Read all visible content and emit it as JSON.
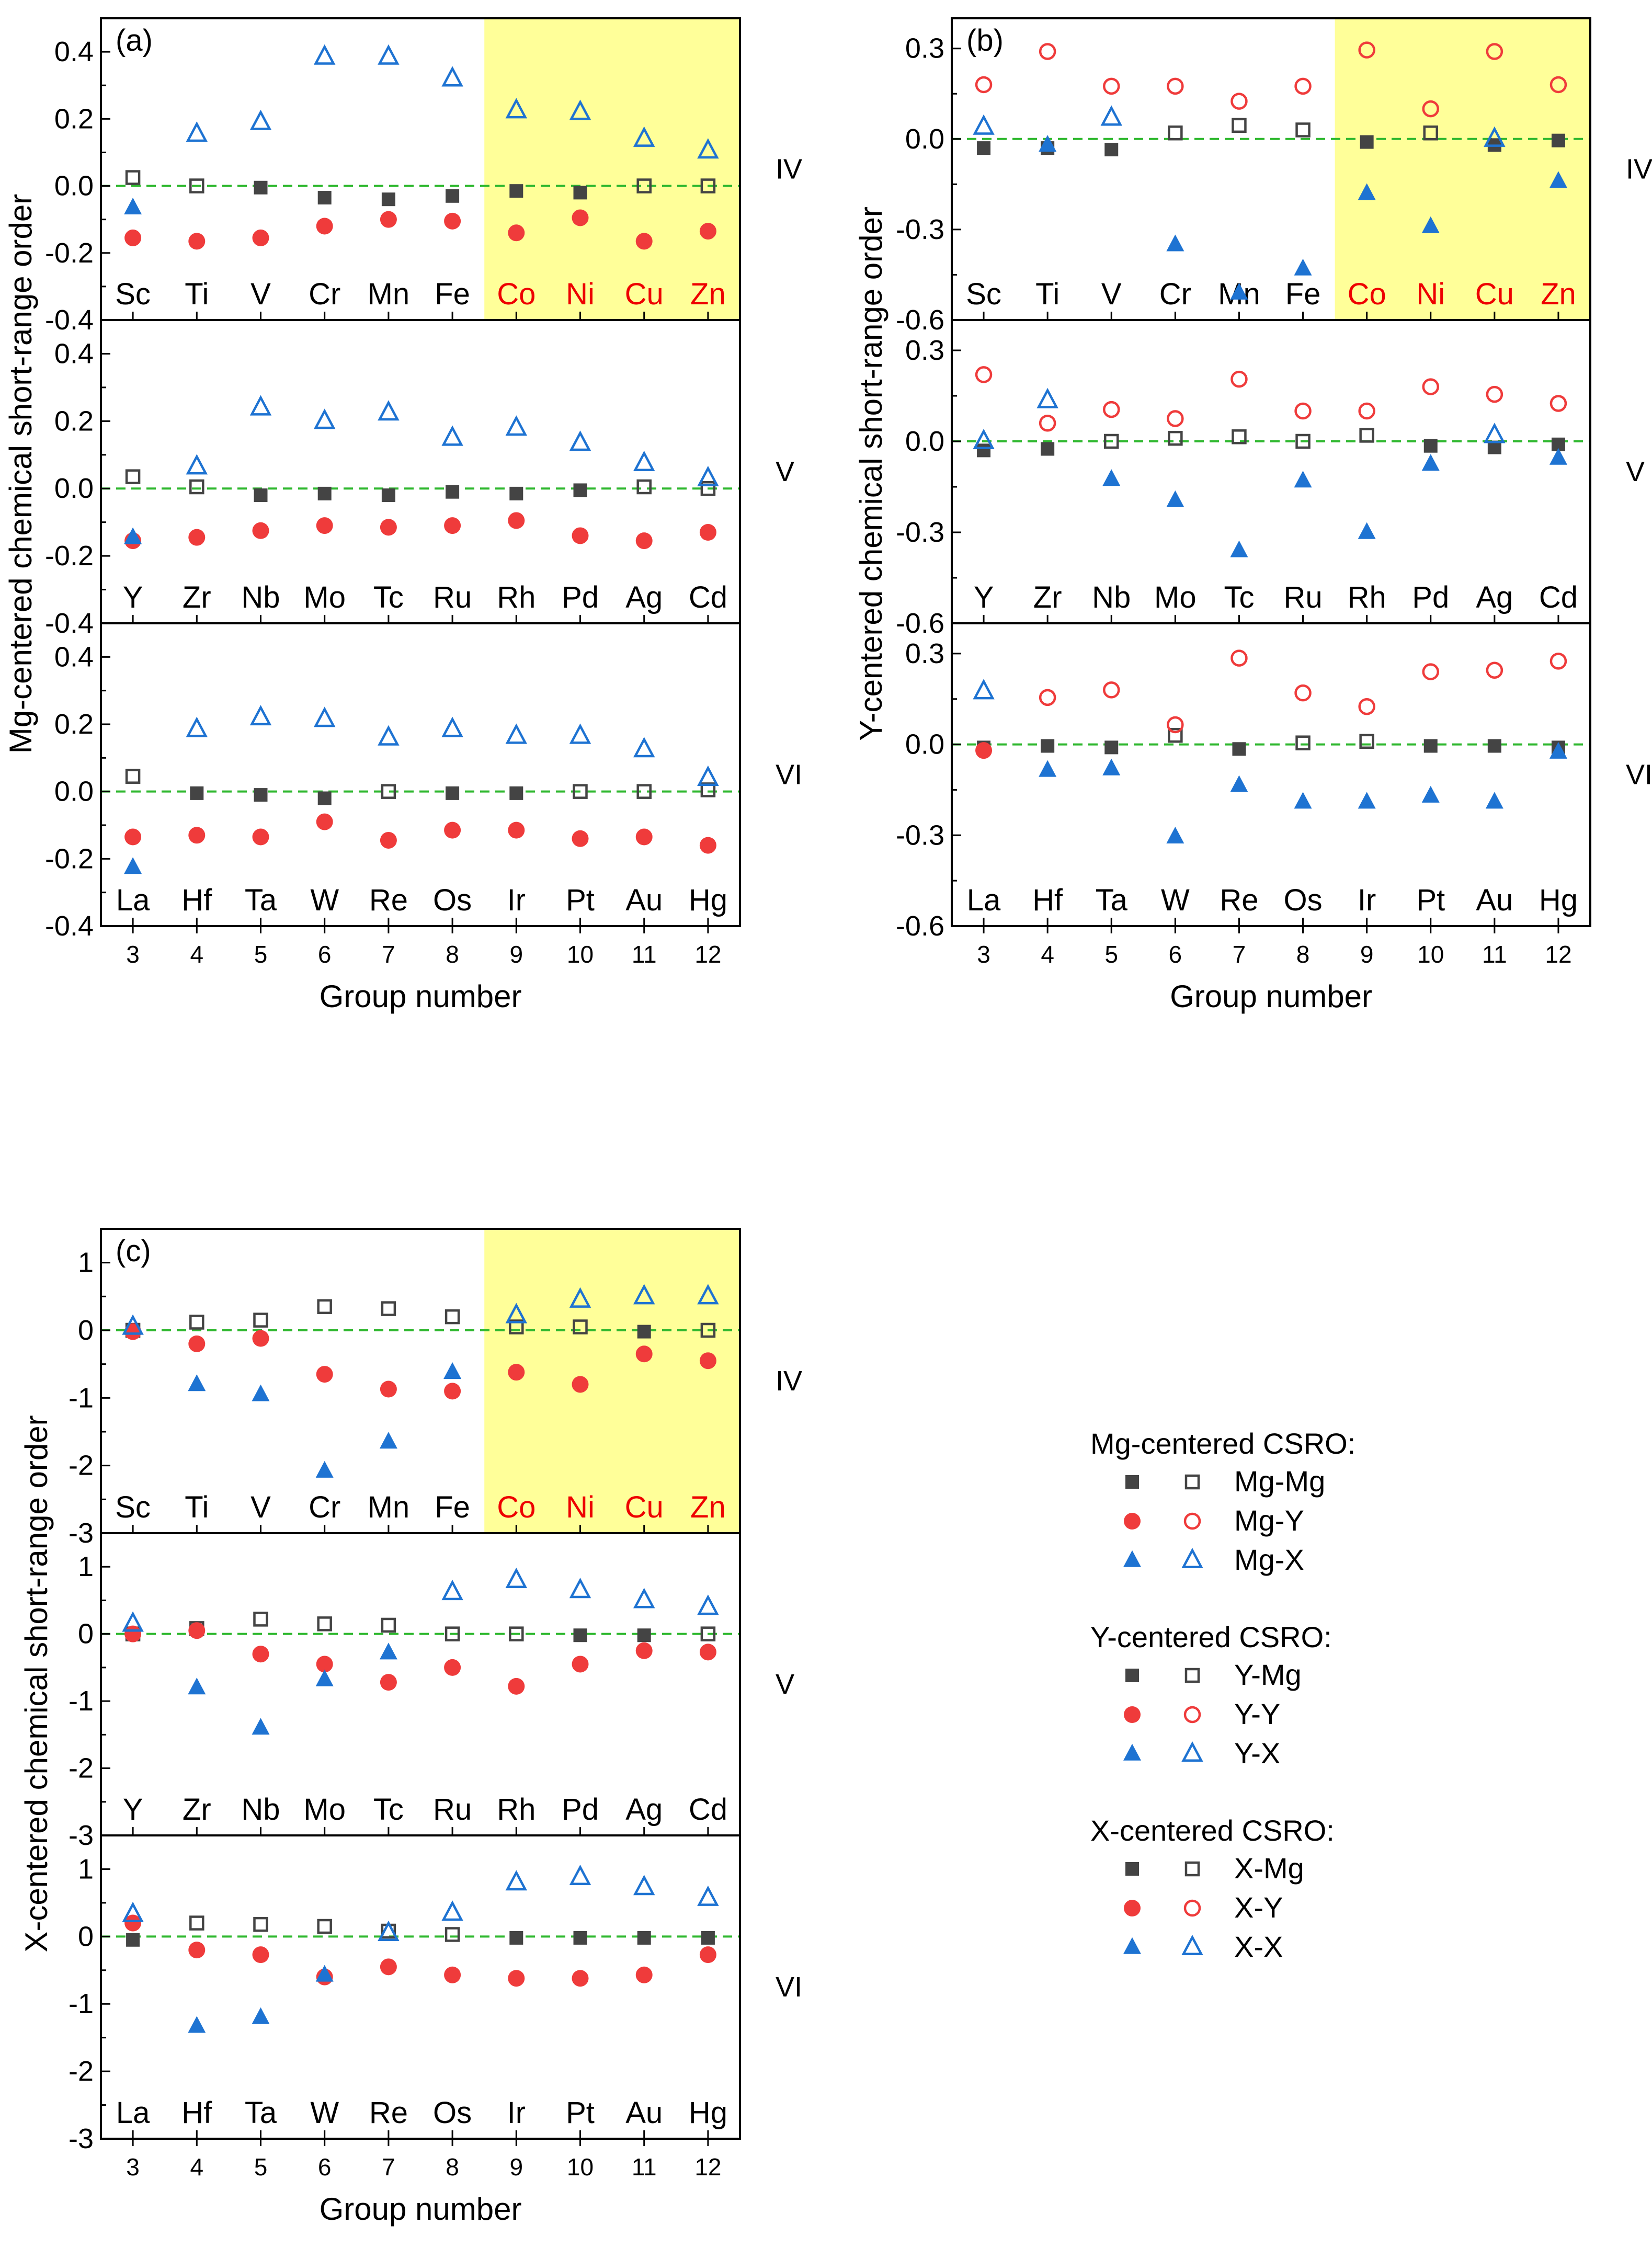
{
  "chart_data": [
    {
      "type": "scatter",
      "panel_label": "(a)",
      "ylabel": "Mg-centered chemical short-range order",
      "xlabel": "Group number",
      "x_ticks": [
        3,
        4,
        5,
        6,
        7,
        8,
        9,
        10,
        11,
        12
      ],
      "highlight_x_range": [
        8.5,
        12.5
      ],
      "highlight_color": "#ffff99",
      "rows": [
        {
          "period": "IV",
          "ylim": [
            -0.4,
            0.5
          ],
          "y_ticks": [
            -0.4,
            -0.2,
            0.0,
            0.2,
            0.4
          ],
          "elements": [
            "Sc",
            "Ti",
            "V",
            "Cr",
            "Mn",
            "Fe",
            "Co",
            "Ni",
            "Cu",
            "Zn"
          ],
          "red_elements": [
            "Co",
            "Ni",
            "Cu",
            "Zn"
          ],
          "series": [
            {
              "name": "Mg-Mg",
              "values": [
                0.025,
                0.0,
                -0.005,
                -0.035,
                -0.04,
                -0.03,
                -0.015,
                -0.02,
                0.0,
                0.0
              ]
            },
            {
              "name": "Mg-Y",
              "values": [
                -0.155,
                -0.165,
                -0.155,
                -0.12,
                -0.1,
                -0.105,
                -0.14,
                -0.095,
                -0.165,
                -0.135
              ]
            },
            {
              "name": "Mg-X",
              "values": [
                -0.065,
                0.155,
                0.19,
                0.385,
                0.385,
                0.32,
                0.225,
                0.22,
                0.14,
                0.105
              ]
            }
          ]
        },
        {
          "period": "V",
          "ylim": [
            -0.4,
            0.5
          ],
          "y_ticks": [
            -0.4,
            -0.2,
            0.0,
            0.2,
            0.4
          ],
          "elements": [
            "Y",
            "Zr",
            "Nb",
            "Mo",
            "Tc",
            "Ru",
            "Rh",
            "Pd",
            "Ag",
            "Cd"
          ],
          "red_elements": [],
          "series": [
            {
              "name": "Mg-Mg",
              "values": [
                0.035,
                0.005,
                -0.02,
                -0.015,
                -0.02,
                -0.01,
                -0.015,
                -0.005,
                0.005,
                0.0
              ]
            },
            {
              "name": "Mg-Y",
              "values": [
                -0.155,
                -0.145,
                -0.125,
                -0.11,
                -0.115,
                -0.11,
                -0.095,
                -0.14,
                -0.155,
                -0.13
              ]
            },
            {
              "name": "Mg-X",
              "values": [
                -0.145,
                0.065,
                0.24,
                0.2,
                0.225,
                0.15,
                0.18,
                0.135,
                0.075,
                0.03
              ]
            }
          ]
        },
        {
          "period": "VI",
          "ylim": [
            -0.4,
            0.5
          ],
          "y_ticks": [
            -0.4,
            -0.2,
            0.0,
            0.2,
            0.4
          ],
          "elements": [
            "La",
            "Hf",
            "Ta",
            "W",
            "Re",
            "Os",
            "Ir",
            "Pt",
            "Au",
            "Hg"
          ],
          "red_elements": [],
          "series": [
            {
              "name": "Mg-Mg",
              "values": [
                0.045,
                -0.005,
                -0.01,
                -0.02,
                0.0,
                -0.005,
                -0.005,
                0.0,
                0.0,
                0.005
              ]
            },
            {
              "name": "Mg-Y",
              "values": [
                -0.135,
                -0.13,
                -0.135,
                -0.09,
                -0.145,
                -0.115,
                -0.115,
                -0.14,
                -0.135,
                -0.16
              ]
            },
            {
              "name": "Mg-X",
              "values": [
                -0.225,
                0.185,
                0.22,
                0.215,
                0.16,
                0.185,
                0.165,
                0.165,
                0.125,
                0.04
              ]
            }
          ]
        }
      ]
    },
    {
      "type": "scatter",
      "panel_label": "(b)",
      "ylabel": "Y-centered chemical short-range order",
      "xlabel": "Group number",
      "x_ticks": [
        3,
        4,
        5,
        6,
        7,
        8,
        9,
        10,
        11,
        12
      ],
      "highlight_x_range": [
        8.5,
        12.5
      ],
      "highlight_color": "#ffff99",
      "rows": [
        {
          "period": "IV",
          "ylim": [
            -0.6,
            0.4
          ],
          "y_ticks": [
            -0.6,
            -0.3,
            0.0,
            0.3
          ],
          "elements": [
            "Sc",
            "Ti",
            "V",
            "Cr",
            "Mn",
            "Fe",
            "Co",
            "Ni",
            "Cu",
            "Zn"
          ],
          "red_elements": [
            "Co",
            "Ni",
            "Cu",
            "Zn"
          ],
          "series": [
            {
              "name": "Y-Mg",
              "values": [
                -0.03,
                -0.03,
                -0.035,
                0.02,
                0.045,
                0.03,
                -0.01,
                0.02,
                -0.02,
                -0.005
              ]
            },
            {
              "name": "Y-Y",
              "values": [
                0.18,
                0.29,
                0.175,
                0.175,
                0.125,
                0.175,
                0.295,
                0.1,
                0.29,
                0.18
              ]
            },
            {
              "name": "Y-X",
              "values": [
                0.04,
                -0.02,
                0.07,
                -0.35,
                -0.51,
                -0.43,
                -0.18,
                -0.29,
                0.0,
                -0.14
              ]
            }
          ]
        },
        {
          "period": "V",
          "ylim": [
            -0.6,
            0.4
          ],
          "y_ticks": [
            -0.6,
            -0.3,
            0.0,
            0.3
          ],
          "elements": [
            "Y",
            "Zr",
            "Nb",
            "Mo",
            "Tc",
            "Ru",
            "Rh",
            "Pd",
            "Ag",
            "Cd"
          ],
          "red_elements": [],
          "series": [
            {
              "name": "Y-Mg",
              "values": [
                -0.03,
                -0.025,
                0.0,
                0.01,
                0.015,
                0.0,
                0.02,
                -0.015,
                -0.02,
                -0.01
              ]
            },
            {
              "name": "Y-Y",
              "values": [
                0.22,
                0.06,
                0.105,
                0.075,
                0.205,
                0.1,
                0.1,
                0.18,
                0.155,
                0.125
              ]
            },
            {
              "name": "Y-X",
              "values": [
                0.0,
                0.135,
                -0.125,
                -0.195,
                -0.36,
                -0.13,
                -0.3,
                -0.075,
                0.02,
                -0.055
              ]
            }
          ]
        },
        {
          "period": "VI",
          "ylim": [
            -0.6,
            0.4
          ],
          "y_ticks": [
            -0.6,
            -0.3,
            0.0,
            0.3
          ],
          "elements": [
            "La",
            "Hf",
            "Ta",
            "W",
            "Re",
            "Os",
            "Ir",
            "Pt",
            "Au",
            "Hg"
          ],
          "red_elements": [],
          "series": [
            {
              "name": "Y-Mg",
              "values": [
                -0.01,
                -0.005,
                -0.01,
                0.03,
                -0.015,
                0.005,
                0.01,
                -0.005,
                -0.005,
                -0.01
              ]
            },
            {
              "name": "Y-Y",
              "values": [
                -0.02,
                0.155,
                0.18,
                0.065,
                0.285,
                0.17,
                0.125,
                0.24,
                0.245,
                0.275
              ]
            },
            {
              "name": "Y-X",
              "values": [
                0.175,
                -0.085,
                -0.08,
                -0.305,
                -0.135,
                -0.19,
                -0.19,
                -0.17,
                -0.19,
                -0.025
              ]
            }
          ]
        }
      ]
    },
    {
      "type": "scatter",
      "panel_label": "(c)",
      "ylabel": "X-centered chemical short-range order",
      "xlabel": "Group number",
      "x_ticks": [
        3,
        4,
        5,
        6,
        7,
        8,
        9,
        10,
        11,
        12
      ],
      "highlight_x_range": [
        8.5,
        12.5
      ],
      "highlight_color": "#ffff99",
      "rows": [
        {
          "period": "IV",
          "ylim": [
            -3,
            1.5
          ],
          "y_ticks": [
            -3,
            -2,
            -1,
            0,
            1
          ],
          "elements": [
            "Sc",
            "Ti",
            "V",
            "Cr",
            "Mn",
            "Fe",
            "Co",
            "Ni",
            "Cu",
            "Zn"
          ],
          "red_elements": [
            "Co",
            "Ni",
            "Cu",
            "Zn"
          ],
          "series": [
            {
              "name": "X-Mg",
              "values": [
                0.0,
                0.12,
                0.15,
                0.35,
                0.32,
                0.2,
                0.05,
                0.05,
                -0.02,
                0.0
              ]
            },
            {
              "name": "X-Y",
              "values": [
                -0.02,
                -0.2,
                -0.12,
                -0.65,
                -0.87,
                -0.9,
                -0.62,
                -0.8,
                -0.35,
                -0.45
              ]
            },
            {
              "name": "X-X",
              "values": [
                0.05,
                -0.8,
                -0.95,
                -2.08,
                -1.65,
                -0.62,
                0.22,
                0.45,
                0.5,
                0.5
              ]
            }
          ]
        },
        {
          "period": "V",
          "ylim": [
            -3,
            1.5
          ],
          "y_ticks": [
            -3,
            -2,
            -1,
            0,
            1
          ],
          "elements": [
            "Y",
            "Zr",
            "Nb",
            "Mo",
            "Tc",
            "Ru",
            "Rh",
            "Pd",
            "Ag",
            "Cd"
          ],
          "red_elements": [],
          "series": [
            {
              "name": "X-Mg",
              "values": [
                0.0,
                0.08,
                0.22,
                0.15,
                0.13,
                0.0,
                0.0,
                -0.02,
                -0.02,
                0.0
              ]
            },
            {
              "name": "X-Y",
              "values": [
                0.0,
                0.05,
                -0.3,
                -0.45,
                -0.72,
                -0.5,
                -0.78,
                -0.45,
                -0.25,
                -0.27
              ]
            },
            {
              "name": "X-X",
              "values": [
                0.15,
                -0.8,
                -1.4,
                -0.68,
                -0.28,
                0.62,
                0.8,
                0.65,
                0.5,
                0.4
              ]
            }
          ]
        },
        {
          "period": "VI",
          "ylim": [
            -3,
            1.5
          ],
          "y_ticks": [
            -3,
            -2,
            -1,
            0,
            1
          ],
          "elements": [
            "La",
            "Hf",
            "Ta",
            "W",
            "Re",
            "Os",
            "Ir",
            "Pt",
            "Au",
            "Hg"
          ],
          "red_elements": [],
          "series": [
            {
              "name": "X-Mg",
              "values": [
                -0.05,
                0.2,
                0.18,
                0.15,
                0.08,
                0.03,
                -0.02,
                -0.02,
                -0.02,
                -0.02
              ]
            },
            {
              "name": "X-Y",
              "values": [
                0.2,
                -0.2,
                -0.27,
                -0.6,
                -0.45,
                -0.57,
                -0.62,
                -0.62,
                -0.57,
                -0.27
              ]
            },
            {
              "name": "X-X",
              "values": [
                0.33,
                -1.33,
                -1.2,
                -0.57,
                0.05,
                0.35,
                0.8,
                0.88,
                0.73,
                0.57
              ]
            }
          ]
        }
      ]
    }
  ],
  "legend": {
    "groups": [
      {
        "title": "Mg-centered CSRO:",
        "items": [
          "Mg-Mg",
          "Mg-Y",
          "Mg-X"
        ]
      },
      {
        "title": "Y-centered CSRO:",
        "items": [
          "Y-Mg",
          "Y-Y",
          "Y-X"
        ]
      },
      {
        "title": "X-centered CSRO:",
        "items": [
          "X-Mg",
          "X-Y",
          "X-X"
        ]
      }
    ]
  },
  "colors": {
    "square": "#444444",
    "circle": "#ef3b3b",
    "triangle": "#1e73d2",
    "zero_line": "#2fb82f",
    "red_label": "#ee0000",
    "highlight": "#ffff99"
  }
}
